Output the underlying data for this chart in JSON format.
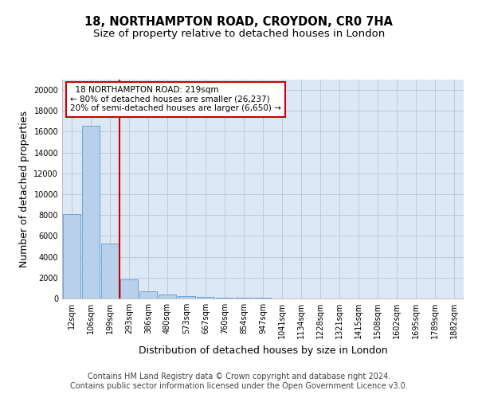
{
  "title": "18, NORTHAMPTON ROAD, CROYDON, CR0 7HA",
  "subtitle": "Size of property relative to detached houses in London",
  "xlabel": "Distribution of detached houses by size in London",
  "ylabel": "Number of detached properties",
  "categories": [
    "12sqm",
    "106sqm",
    "199sqm",
    "293sqm",
    "386sqm",
    "480sqm",
    "573sqm",
    "667sqm",
    "760sqm",
    "854sqm",
    "947sqm",
    "1041sqm",
    "1134sqm",
    "1228sqm",
    "1321sqm",
    "1415sqm",
    "1508sqm",
    "1602sqm",
    "1695sqm",
    "1789sqm",
    "1882sqm"
  ],
  "values": [
    8100,
    16600,
    5300,
    1800,
    700,
    350,
    200,
    120,
    80,
    60,
    45,
    35,
    28,
    22,
    18,
    15,
    12,
    10,
    8,
    7,
    6
  ],
  "bar_color": "#b8d0ea",
  "bar_edge_color": "#5b9bd5",
  "vline_x_pos": 2.48,
  "vline_color": "#cc0000",
  "annotation_text": "  18 NORTHAMPTON ROAD: 219sqm  \n← 80% of detached houses are smaller (26,237)\n20% of semi-detached houses are larger (6,650) →",
  "annotation_box_color": "#cc0000",
  "ylim": [
    0,
    21000
  ],
  "yticks": [
    0,
    2000,
    4000,
    6000,
    8000,
    10000,
    12000,
    14000,
    16000,
    18000,
    20000
  ],
  "footer_line1": "Contains HM Land Registry data © Crown copyright and database right 2024.",
  "footer_line2": "Contains public sector information licensed under the Open Government Licence v3.0.",
  "bg_color": "#ffffff",
  "plot_bg_color": "#dde8f5",
  "grid_color": "#c0c8d8",
  "title_fontsize": 10.5,
  "subtitle_fontsize": 9.5,
  "axis_label_fontsize": 9,
  "tick_fontsize": 7,
  "footer_fontsize": 7
}
